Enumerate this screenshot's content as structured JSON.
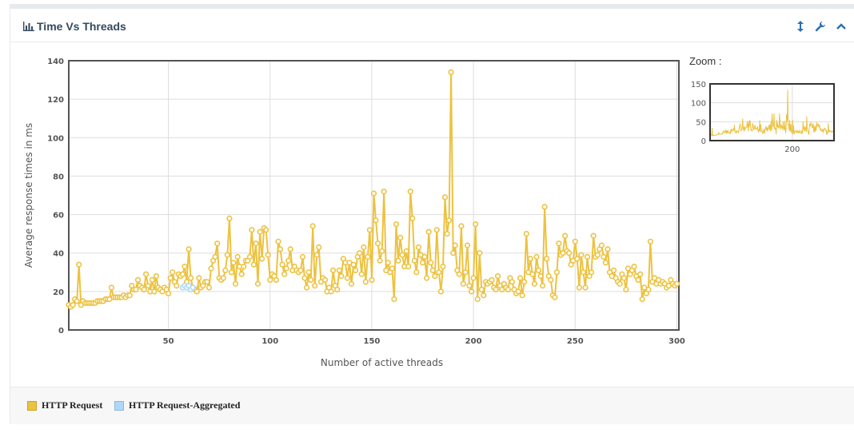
{
  "panel": {
    "title": "Time Vs Threads",
    "icons": [
      "bar-chart-icon",
      "resize-icon",
      "wrench-icon",
      "chevron-up-icon"
    ]
  },
  "zoom": {
    "label": "Zoom :",
    "ylim": [
      0,
      150
    ],
    "yticks": [
      0,
      50,
      100,
      150
    ],
    "xticks": [
      200
    ]
  },
  "colors": {
    "series1": "#EDC240",
    "series2": "#AFD8F8",
    "grid": "#dddddd",
    "axis": "#545454"
  },
  "legend": [
    {
      "label": "HTTP Request",
      "color": "#EDC240"
    },
    {
      "label": "HTTP Request-Aggregated",
      "color": "#AFD8F8"
    }
  ],
  "chart_data": {
    "type": "line",
    "xlabel": "Number of active threads",
    "ylabel": "Average response times in ms",
    "xlim": [
      1,
      301
    ],
    "ylim": [
      0,
      140
    ],
    "xticks": [
      50,
      100,
      150,
      200,
      250,
      300
    ],
    "yticks": [
      0,
      20,
      40,
      60,
      80,
      100,
      120,
      140
    ],
    "grid": true,
    "series": [
      {
        "name": "HTTP Request",
        "points": [
          [
            1,
            13
          ],
          [
            2,
            12
          ],
          [
            3,
            13
          ],
          [
            4,
            16
          ],
          [
            5,
            15
          ],
          [
            6,
            34
          ],
          [
            7,
            13
          ],
          [
            8,
            15
          ],
          [
            9,
            14
          ],
          [
            10,
            14
          ],
          [
            11,
            14
          ],
          [
            12,
            14
          ],
          [
            13,
            14
          ],
          [
            14,
            14
          ],
          [
            15,
            15
          ],
          [
            16,
            15
          ],
          [
            17,
            15
          ],
          [
            18,
            15
          ],
          [
            19,
            16
          ],
          [
            20,
            16
          ],
          [
            21,
            16
          ],
          [
            22,
            22
          ],
          [
            23,
            17
          ],
          [
            24,
            17
          ],
          [
            25,
            17
          ],
          [
            26,
            17
          ],
          [
            27,
            17
          ],
          [
            28,
            18
          ],
          [
            29,
            17
          ],
          [
            30,
            18
          ],
          [
            31,
            18
          ],
          [
            32,
            23
          ],
          [
            33,
            21
          ],
          [
            34,
            21
          ],
          [
            35,
            26
          ],
          [
            36,
            23
          ],
          [
            37,
            22
          ],
          [
            38,
            21
          ],
          [
            39,
            29
          ],
          [
            40,
            23
          ],
          [
            41,
            20
          ],
          [
            42,
            26
          ],
          [
            43,
            20
          ],
          [
            44,
            28
          ],
          [
            45,
            22
          ],
          [
            46,
            21
          ],
          [
            47,
            20
          ],
          [
            48,
            22
          ],
          [
            49,
            21
          ],
          [
            50,
            19
          ],
          [
            51,
            27
          ],
          [
            52,
            30
          ],
          [
            53,
            25
          ],
          [
            54,
            23
          ],
          [
            55,
            29
          ],
          [
            56,
            28
          ],
          [
            57,
            29
          ],
          [
            58,
            33
          ],
          [
            59,
            25
          ],
          [
            60,
            42
          ],
          [
            61,
            27
          ],
          [
            62,
            22
          ],
          [
            63,
            21
          ],
          [
            64,
            20
          ],
          [
            65,
            27
          ],
          [
            66,
            22
          ],
          [
            67,
            23
          ],
          [
            68,
            25
          ],
          [
            69,
            25
          ],
          [
            70,
            22
          ],
          [
            71,
            32
          ],
          [
            72,
            36
          ],
          [
            73,
            38
          ],
          [
            74,
            45
          ],
          [
            75,
            27
          ],
          [
            76,
            26
          ],
          [
            77,
            27
          ],
          [
            78,
            31
          ],
          [
            79,
            39
          ],
          [
            80,
            58
          ],
          [
            81,
            30
          ],
          [
            82,
            35
          ],
          [
            83,
            24
          ],
          [
            84,
            38
          ],
          [
            85,
            33
          ],
          [
            86,
            29
          ],
          [
            87,
            33
          ],
          [
            88,
            36
          ],
          [
            89,
            36
          ],
          [
            90,
            38
          ],
          [
            91,
            52
          ],
          [
            92,
            34
          ],
          [
            93,
            45
          ],
          [
            94,
            24
          ],
          [
            95,
            51
          ],
          [
            96,
            37
          ],
          [
            97,
            53
          ],
          [
            98,
            52
          ],
          [
            99,
            39
          ],
          [
            100,
            26
          ],
          [
            101,
            29
          ],
          [
            102,
            28
          ],
          [
            103,
            26
          ],
          [
            104,
            46
          ],
          [
            105,
            42
          ],
          [
            106,
            34
          ],
          [
            107,
            29
          ],
          [
            108,
            32
          ],
          [
            109,
            36
          ],
          [
            110,
            42
          ],
          [
            111,
            31
          ],
          [
            112,
            33
          ],
          [
            113,
            31
          ],
          [
            114,
            30
          ],
          [
            115,
            31
          ],
          [
            116,
            38
          ],
          [
            117,
            27
          ],
          [
            118,
            22
          ],
          [
            119,
            30
          ],
          [
            120,
            26
          ],
          [
            121,
            54
          ],
          [
            122,
            23
          ],
          [
            123,
            39
          ],
          [
            124,
            43
          ],
          [
            125,
            25
          ],
          [
            126,
            27
          ],
          [
            127,
            26
          ],
          [
            128,
            20
          ],
          [
            129,
            22
          ],
          [
            130,
            20
          ],
          [
            131,
            31
          ],
          [
            132,
            23
          ],
          [
            133,
            21
          ],
          [
            134,
            31
          ],
          [
            135,
            28
          ],
          [
            136,
            37
          ],
          [
            137,
            35
          ],
          [
            138,
            27
          ],
          [
            139,
            35
          ],
          [
            140,
            24
          ],
          [
            141,
            34
          ],
          [
            142,
            31
          ],
          [
            143,
            38
          ],
          [
            144,
            40
          ],
          [
            145,
            29
          ],
          [
            146,
            43
          ],
          [
            147,
            25
          ],
          [
            148,
            38
          ],
          [
            149,
            52
          ],
          [
            150,
            26
          ],
          [
            151,
            71
          ],
          [
            152,
            57
          ],
          [
            153,
            45
          ],
          [
            154,
            36
          ],
          [
            155,
            41
          ],
          [
            156,
            72
          ],
          [
            157,
            31
          ],
          [
            158,
            35
          ],
          [
            159,
            30
          ],
          [
            160,
            32
          ],
          [
            161,
            16
          ],
          [
            162,
            55
          ],
          [
            163,
            36
          ],
          [
            164,
            48
          ],
          [
            165,
            39
          ],
          [
            166,
            33
          ],
          [
            167,
            41
          ],
          [
            168,
            33
          ],
          [
            169,
            72
          ],
          [
            170,
            58
          ],
          [
            171,
            36
          ],
          [
            172,
            30
          ],
          [
            173,
            43
          ],
          [
            174,
            39
          ],
          [
            175,
            35
          ],
          [
            176,
            38
          ],
          [
            177,
            27
          ],
          [
            178,
            51
          ],
          [
            179,
            35
          ],
          [
            180,
            31
          ],
          [
            181,
            28
          ],
          [
            182,
            52
          ],
          [
            183,
            30
          ],
          [
            184,
            20
          ],
          [
            185,
            33
          ],
          [
            186,
            69
          ],
          [
            187,
            50
          ],
          [
            188,
            57
          ],
          [
            189,
            134
          ],
          [
            190,
            40
          ],
          [
            191,
            44
          ],
          [
            192,
            31
          ],
          [
            193,
            29
          ],
          [
            194,
            54
          ],
          [
            195,
            24
          ],
          [
            196,
            30
          ],
          [
            197,
            44
          ],
          [
            198,
            23
          ],
          [
            199,
            20
          ],
          [
            200,
            27
          ],
          [
            201,
            55
          ],
          [
            202,
            16
          ],
          [
            203,
            40
          ],
          [
            204,
            21
          ],
          [
            205,
            18
          ],
          [
            206,
            25
          ],
          [
            207,
            24
          ],
          [
            208,
            25
          ],
          [
            209,
            26
          ],
          [
            210,
            22
          ],
          [
            211,
            21
          ],
          [
            212,
            28
          ],
          [
            213,
            23
          ],
          [
            214,
            21
          ],
          [
            215,
            24
          ],
          [
            216,
            22
          ],
          [
            217,
            21
          ],
          [
            218,
            27
          ],
          [
            219,
            25
          ],
          [
            220,
            21
          ],
          [
            221,
            19
          ],
          [
            222,
            20
          ],
          [
            223,
            27
          ],
          [
            224,
            18
          ],
          [
            225,
            25
          ],
          [
            226,
            50
          ],
          [
            227,
            30
          ],
          [
            228,
            37
          ],
          [
            229,
            29
          ],
          [
            230,
            24
          ],
          [
            231,
            38
          ],
          [
            232,
            31
          ],
          [
            233,
            28
          ],
          [
            234,
            23
          ],
          [
            235,
            64
          ],
          [
            236,
            37
          ],
          [
            237,
            28
          ],
          [
            238,
            26
          ],
          [
            239,
            18
          ],
          [
            240,
            17
          ],
          [
            241,
            30
          ],
          [
            242,
            45
          ],
          [
            243,
            39
          ],
          [
            244,
            40
          ],
          [
            245,
            49
          ],
          [
            246,
            41
          ],
          [
            247,
            40
          ],
          [
            248,
            34
          ],
          [
            249,
            36
          ],
          [
            250,
            46
          ],
          [
            251,
            37
          ],
          [
            252,
            22
          ],
          [
            253,
            39
          ],
          [
            254,
            30
          ],
          [
            255,
            22
          ],
          [
            256,
            38
          ],
          [
            257,
            28
          ],
          [
            258,
            30
          ],
          [
            259,
            49
          ],
          [
            260,
            38
          ],
          [
            261,
            39
          ],
          [
            262,
            42
          ],
          [
            263,
            44
          ],
          [
            264,
            38
          ],
          [
            265,
            35
          ],
          [
            266,
            42
          ],
          [
            267,
            30
          ],
          [
            268,
            28
          ],
          [
            269,
            31
          ],
          [
            270,
            27
          ],
          [
            271,
            25
          ],
          [
            272,
            24
          ],
          [
            273,
            29
          ],
          [
            274,
            27
          ],
          [
            275,
            21
          ],
          [
            276,
            32
          ],
          [
            277,
            29
          ],
          [
            278,
            31
          ],
          [
            279,
            33
          ],
          [
            280,
            28
          ],
          [
            281,
            26
          ],
          [
            282,
            29
          ],
          [
            283,
            16
          ],
          [
            284,
            22
          ],
          [
            285,
            19
          ],
          [
            286,
            21
          ],
          [
            287,
            46
          ],
          [
            288,
            25
          ],
          [
            289,
            27
          ],
          [
            290,
            24
          ],
          [
            291,
            26
          ],
          [
            292,
            24
          ],
          [
            293,
            25
          ],
          [
            294,
            24
          ],
          [
            295,
            22
          ],
          [
            296,
            23
          ],
          [
            297,
            26
          ],
          [
            298,
            24
          ],
          [
            299,
            23
          ],
          [
            300,
            24
          ]
        ]
      },
      {
        "name": "HTTP Request-Aggregated",
        "points": [
          [
            57,
            22
          ],
          [
            58,
            23
          ],
          [
            59,
            22
          ],
          [
            60,
            23
          ],
          [
            61,
            21
          ],
          [
            62,
            22
          ]
        ]
      }
    ]
  }
}
